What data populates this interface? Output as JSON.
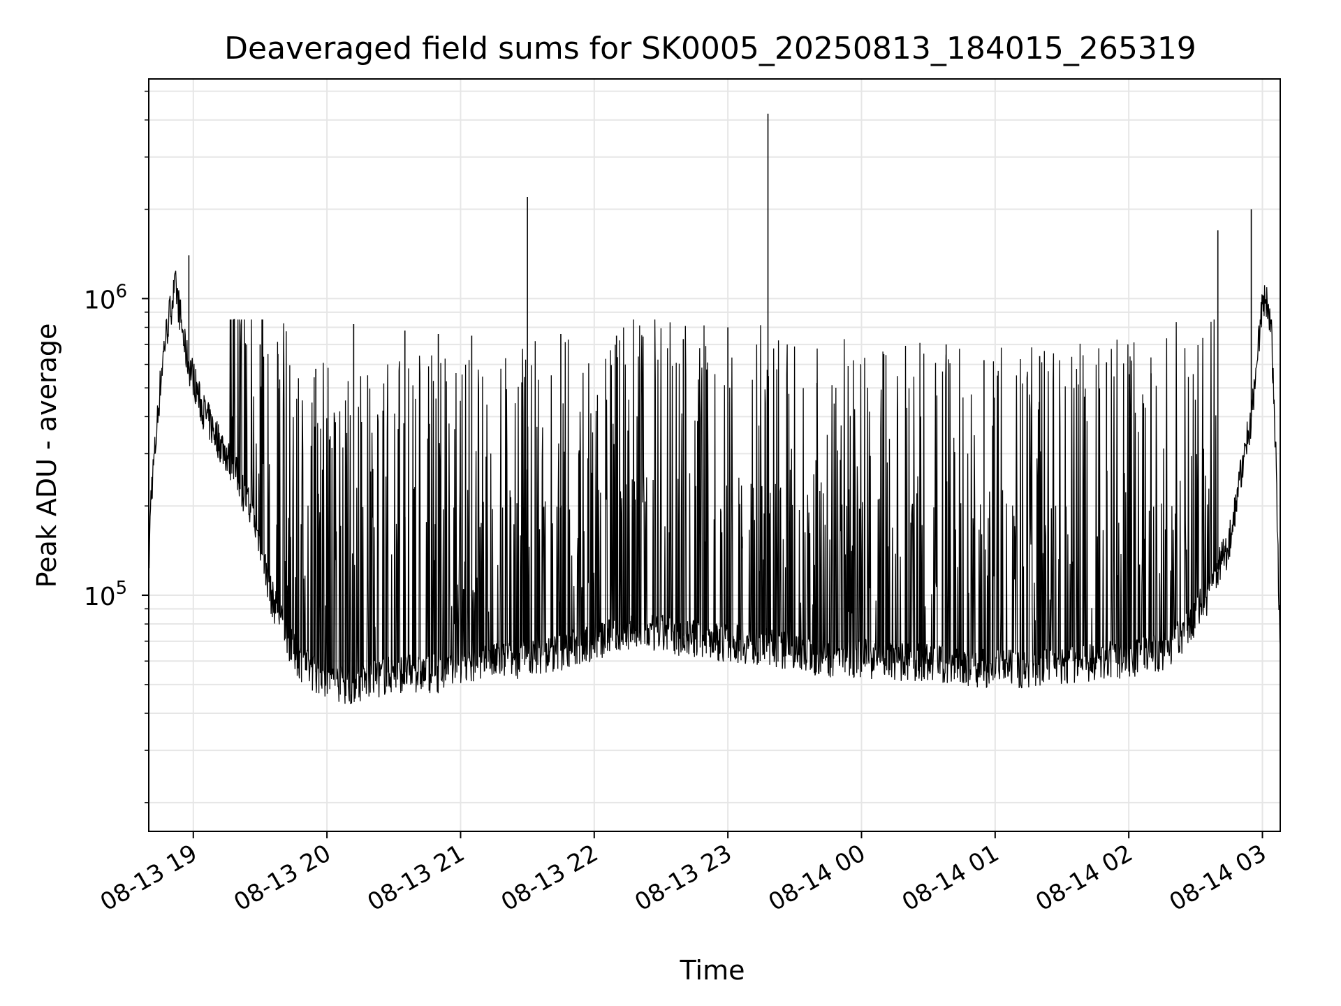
{
  "chart_data": {
    "type": "line",
    "title": "Deaveraged field sums for SK0005_20250813_184015_265319",
    "xlabel": "Time",
    "ylabel": "Peak ADU - average",
    "yscale": "log",
    "grid": true,
    "legend": "none",
    "line_color": "#000000",
    "grid_color": "#e6e6e6",
    "x_ticks": [
      {
        "label": "08-13 19",
        "time": "2025-08-13T19:00"
      },
      {
        "label": "08-13 20",
        "time": "2025-08-13T20:00"
      },
      {
        "label": "08-13 21",
        "time": "2025-08-13T21:00"
      },
      {
        "label": "08-13 22",
        "time": "2025-08-13T22:00"
      },
      {
        "label": "08-13 23",
        "time": "2025-08-13T23:00"
      },
      {
        "label": "08-14 00",
        "time": "2025-08-14T00:00"
      },
      {
        "label": "08-14 01",
        "time": "2025-08-14T01:00"
      },
      {
        "label": "08-14 02",
        "time": "2025-08-14T02:00"
      },
      {
        "label": "08-14 03",
        "time": "2025-08-14T03:00"
      }
    ],
    "y_ticks": [
      {
        "base": "10",
        "exp": "5",
        "value": 100000
      },
      {
        "base": "10",
        "exp": "6",
        "value": 1000000
      }
    ],
    "xlim": [
      "2025-08-13T18:40",
      "2025-08-14T03:08"
    ],
    "ylim": [
      16000,
      5500000
    ],
    "x": [
      "2025-08-13T18:40",
      "2025-08-13T18:41",
      "2025-08-13T18:43",
      "2025-08-13T18:45",
      "2025-08-13T18:47",
      "2025-08-13T18:50",
      "2025-08-13T18:52",
      "2025-08-13T18:54",
      "2025-08-13T18:56",
      "2025-08-13T18:58",
      "2025-08-13T19:00",
      "2025-08-13T19:03",
      "2025-08-13T19:06",
      "2025-08-13T19:10",
      "2025-08-13T19:15",
      "2025-08-13T19:20",
      "2025-08-13T19:25",
      "2025-08-13T19:30",
      "2025-08-13T19:35",
      "2025-08-13T19:40",
      "2025-08-13T19:45",
      "2025-08-13T19:50",
      "2025-08-13T19:55",
      "2025-08-13T20:00",
      "2025-08-13T20:10",
      "2025-08-13T20:20",
      "2025-08-13T20:30",
      "2025-08-13T20:40",
      "2025-08-13T20:50",
      "2025-08-13T21:00",
      "2025-08-13T21:15",
      "2025-08-13T21:30",
      "2025-08-13T21:45",
      "2025-08-13T22:00",
      "2025-08-13T22:15",
      "2025-08-13T22:30",
      "2025-08-13T22:45",
      "2025-08-13T23:00",
      "2025-08-13T23:15",
      "2025-08-13T23:30",
      "2025-08-13T23:45",
      "2025-08-14T00:00",
      "2025-08-14T00:15",
      "2025-08-14T00:30",
      "2025-08-14T00:45",
      "2025-08-14T01:00",
      "2025-08-14T01:15",
      "2025-08-14T01:30",
      "2025-08-14T01:45",
      "2025-08-14T02:00",
      "2025-08-14T02:15",
      "2025-08-14T02:25",
      "2025-08-14T02:35",
      "2025-08-14T02:45",
      "2025-08-14T02:50",
      "2025-08-14T02:55",
      "2025-08-14T02:58",
      "2025-08-14T03:00",
      "2025-08-14T03:02",
      "2025-08-14T03:04",
      "2025-08-14T03:06",
      "2025-08-14T03:08"
    ],
    "y": [
      120000,
      220000,
      320000,
      500000,
      700000,
      950000,
      1100000,
      900000,
      700000,
      600000,
      550000,
      450000,
      400000,
      350000,
      300000,
      250000,
      200000,
      150000,
      100000,
      80000,
      65000,
      58000,
      55000,
      52000,
      50000,
      52000,
      55000,
      55000,
      55000,
      56000,
      60000,
      62000,
      65000,
      70000,
      75000,
      75000,
      72000,
      70000,
      68000,
      65000,
      62000,
      62000,
      60000,
      60000,
      58000,
      57000,
      57000,
      58000,
      60000,
      62000,
      65000,
      75000,
      100000,
      150000,
      250000,
      400000,
      700000,
      950000,
      1000000,
      800000,
      300000,
      60000
    ],
    "spike_tops": [
      {
        "x": "2025-08-13T18:58",
        "y": 1400000
      },
      {
        "x": "2025-08-13T19:30",
        "y": 700000
      },
      {
        "x": "2025-08-13T19:38",
        "y": 650000
      },
      {
        "x": "2025-08-13T19:55",
        "y": 580000
      },
      {
        "x": "2025-08-13T20:12",
        "y": 820000
      },
      {
        "x": "2025-08-13T20:35",
        "y": 780000
      },
      {
        "x": "2025-08-13T20:50",
        "y": 760000
      },
      {
        "x": "2025-08-13T21:05",
        "y": 750000
      },
      {
        "x": "2025-08-13T21:30",
        "y": 2200000
      },
      {
        "x": "2025-08-13T21:45",
        "y": 760000
      },
      {
        "x": "2025-08-13T22:10",
        "y": 750000
      },
      {
        "x": "2025-08-13T22:40",
        "y": 730000
      },
      {
        "x": "2025-08-13T23:00",
        "y": 800000
      },
      {
        "x": "2025-08-13T23:18",
        "y": 4200000
      },
      {
        "x": "2025-08-13T23:40",
        "y": 520000
      },
      {
        "x": "2025-08-14T00:10",
        "y": 650000
      },
      {
        "x": "2025-08-14T00:38",
        "y": 700000
      },
      {
        "x": "2025-08-14T00:55",
        "y": 620000
      },
      {
        "x": "2025-08-14T01:20",
        "y": 640000
      },
      {
        "x": "2025-08-14T01:50",
        "y": 610000
      },
      {
        "x": "2025-08-14T02:10",
        "y": 560000
      },
      {
        "x": "2025-08-14T02:40",
        "y": 1700000
      },
      {
        "x": "2025-08-14T02:55",
        "y": 2000000
      }
    ]
  }
}
